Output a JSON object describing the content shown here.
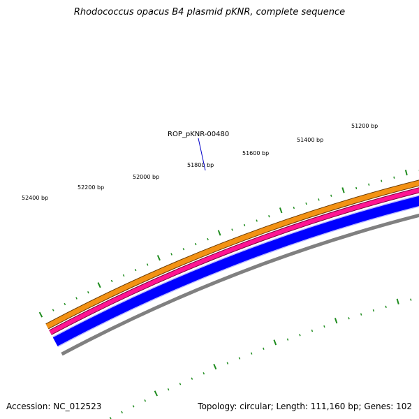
{
  "title": "Rhodococcus opacus B4 plasmid pKNR, complete sequence",
  "footer": {
    "accession": "Accession: NC_012523",
    "summary": "Topology: circular; Length: 111,160 bp; Genes: 102"
  },
  "gene_label": "ROP_pKNR-00480",
  "position_labels": [
    "51200 bp",
    "51400 bp",
    "51600 bp",
    "51800 bp",
    "52000 bp",
    "52200 bp",
    "52400 bp"
  ],
  "colors": {
    "orange_band": "#f39214",
    "pink_band": "#ff1493",
    "blue_band": "#0000ff",
    "gray_band": "#808080",
    "ticks": "#1e8c1e",
    "gene_label": "#0000c8"
  }
}
